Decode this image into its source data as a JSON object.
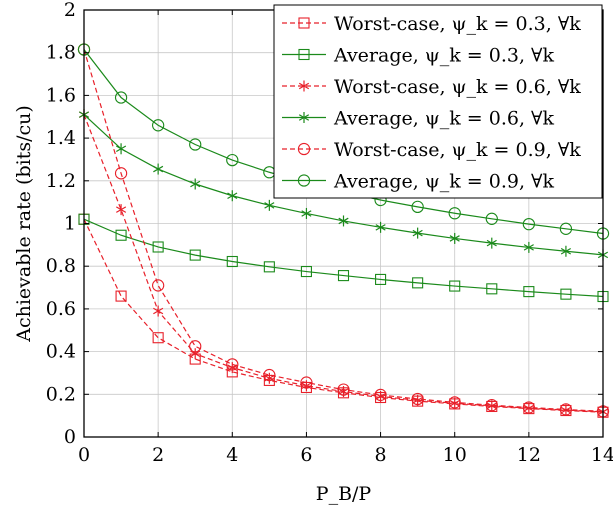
{
  "chart_data": {
    "type": "line",
    "xlabel": "P_B/P",
    "ylabel": "Achievable rate (bits/cu)",
    "xlim": [
      0,
      14
    ],
    "ylim": [
      0,
      2
    ],
    "grid": true,
    "legend_position": "top-right",
    "xticks": [
      "0",
      "2",
      "4",
      "6",
      "8",
      "10",
      "12",
      "14"
    ],
    "yticks": [
      "0",
      "0.2",
      "0.4",
      "0.6",
      "0.8",
      "1",
      "1.2",
      "1.4",
      "1.6",
      "1.8",
      "2"
    ],
    "x": [
      0,
      1,
      2,
      3,
      4,
      5,
      6,
      7,
      8,
      9,
      10,
      11,
      12,
      13,
      14
    ],
    "series": [
      {
        "name": "Worst-case, ψ_k = 0.3, ∀k",
        "color": "#e8202a",
        "dash": true,
        "marker": "square",
        "values": [
          1.02,
          0.66,
          0.465,
          0.365,
          0.305,
          0.265,
          0.232,
          0.207,
          0.185,
          0.168,
          0.155,
          0.143,
          0.133,
          0.124,
          0.116
        ]
      },
      {
        "name": "Average, ψ_k = 0.3, ∀k",
        "color": "#1b8a1b",
        "dash": false,
        "marker": "square",
        "values": [
          1.02,
          0.945,
          0.89,
          0.852,
          0.822,
          0.797,
          0.775,
          0.756,
          0.738,
          0.722,
          0.707,
          0.694,
          0.681,
          0.669,
          0.658
        ]
      },
      {
        "name": "Worst-case, ψ_k = 0.6, ∀k",
        "color": "#e8202a",
        "dash": true,
        "marker": "star",
        "values": [
          1.51,
          1.065,
          0.59,
          0.39,
          0.325,
          0.275,
          0.24,
          0.213,
          0.19,
          0.172,
          0.158,
          0.146,
          0.135,
          0.126,
          0.118
        ]
      },
      {
        "name": "Average, ψ_k = 0.6, ∀k",
        "color": "#1b8a1b",
        "dash": false,
        "marker": "star",
        "values": [
          1.51,
          1.35,
          1.255,
          1.185,
          1.13,
          1.085,
          1.047,
          1.012,
          0.982,
          0.955,
          0.93,
          0.908,
          0.888,
          0.87,
          0.853
        ]
      },
      {
        "name": "Worst-case, ψ_k = 0.9, ∀k",
        "color": "#e8202a",
        "dash": true,
        "marker": "circle",
        "values": [
          1.815,
          1.235,
          0.71,
          0.425,
          0.34,
          0.29,
          0.255,
          0.222,
          0.197,
          0.178,
          0.162,
          0.149,
          0.138,
          0.129,
          0.12
        ]
      },
      {
        "name": "Average, ψ_k = 0.9, ∀k",
        "color": "#1b8a1b",
        "dash": false,
        "marker": "circle",
        "values": [
          1.815,
          1.59,
          1.46,
          1.37,
          1.297,
          1.24,
          1.19,
          1.148,
          1.11,
          1.078,
          1.048,
          1.022,
          0.997,
          0.975,
          0.953
        ]
      }
    ]
  }
}
